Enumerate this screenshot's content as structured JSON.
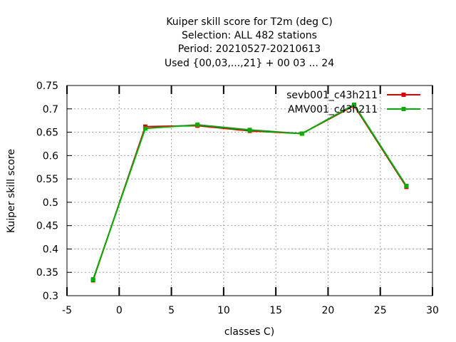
{
  "chart_data": {
    "type": "line",
    "title": [
      "Kuiper skill score  for T2m (deg C)",
      "Selection: ALL    482 stations",
      "Period: 20210527-20210613",
      "Used {00,03,...,21} + 00 03 ... 24"
    ],
    "xlabel": "classes C)",
    "ylabel": "Kuiper skill score",
    "xlim": [
      -5,
      30
    ],
    "ylim": [
      0.3,
      0.75
    ],
    "x_ticks": [
      -5,
      0,
      5,
      10,
      15,
      20,
      25,
      30
    ],
    "y_ticks": [
      0.3,
      0.35,
      0.4,
      0.45,
      0.5,
      0.55,
      0.6,
      0.65,
      0.7,
      0.75
    ],
    "grid": true,
    "legend_position": "top-right",
    "series": [
      {
        "name": "sevb001_c43h211",
        "color": "#e00000",
        "x": [
          -2.5,
          2.5,
          7.5,
          12.5,
          17.5,
          22.5,
          27.5
        ],
        "y": [
          0.333,
          0.662,
          0.664,
          0.653,
          0.647,
          0.707,
          0.533
        ]
      },
      {
        "name": "AMV001_c43h211",
        "color": "#00b000",
        "x": [
          -2.5,
          2.5,
          7.5,
          12.5,
          17.5,
          22.5,
          27.5
        ],
        "y": [
          0.335,
          0.658,
          0.666,
          0.655,
          0.647,
          0.709,
          0.535
        ]
      }
    ]
  }
}
